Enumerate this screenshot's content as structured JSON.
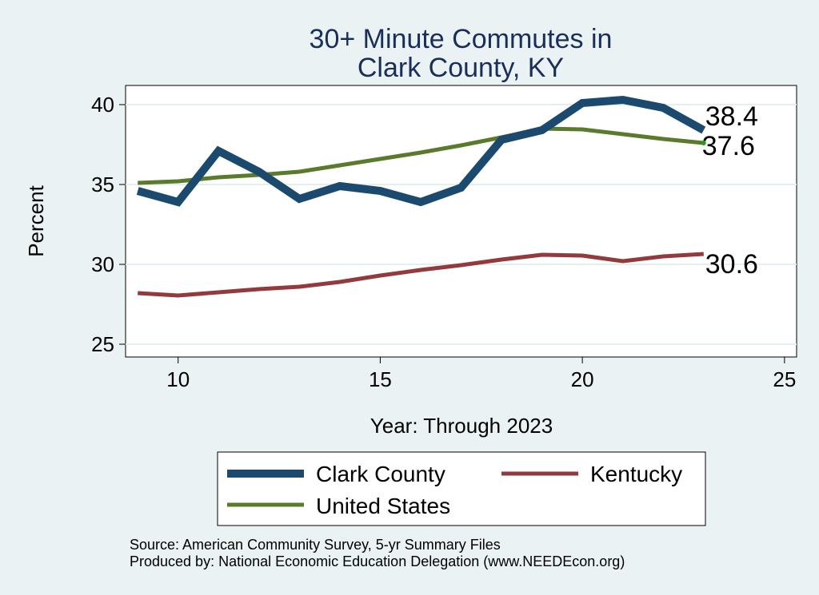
{
  "chart_data": {
    "type": "line",
    "title_lines": [
      "30+ Minute Commutes in",
      "Clark County, KY"
    ],
    "xlabel": "Year: Through 2023",
    "ylabel": "Percent",
    "xlim": [
      8.7,
      25.3
    ],
    "ylim": [
      24.2,
      41.2
    ],
    "xticks": [
      10,
      15,
      20,
      25
    ],
    "yticks": [
      25,
      30,
      35,
      40
    ],
    "grid": true,
    "legend_position": "bottom",
    "series": [
      {
        "name": "Clark County",
        "color": "#1b4a6e",
        "x": [
          9,
          10,
          11,
          12,
          13,
          14,
          15,
          16,
          17,
          18,
          19,
          20,
          21,
          22,
          23
        ],
        "values": [
          34.6,
          33.9,
          37.1,
          35.8,
          34.1,
          34.9,
          34.6,
          33.9,
          34.8,
          37.8,
          38.4,
          40.1,
          40.3,
          39.8,
          38.4
        ],
        "end_label": "38.4"
      },
      {
        "name": "Kentucky",
        "color": "#933a3e",
        "x": [
          9,
          10,
          11,
          12,
          13,
          14,
          15,
          16,
          17,
          18,
          19,
          20,
          21,
          22,
          23
        ],
        "values": [
          28.2,
          28.05,
          28.25,
          28.45,
          28.6,
          28.9,
          29.3,
          29.65,
          29.95,
          30.3,
          30.6,
          30.55,
          30.2,
          30.5,
          30.65
        ],
        "end_label": "30.6"
      },
      {
        "name": "United States",
        "color": "#5a7a2c",
        "x": [
          9,
          10,
          11,
          12,
          13,
          14,
          15,
          16,
          17,
          18,
          19,
          20,
          21,
          22,
          23
        ],
        "values": [
          35.1,
          35.2,
          35.45,
          35.6,
          35.8,
          36.2,
          36.6,
          37.0,
          37.45,
          37.95,
          38.5,
          38.45,
          38.15,
          37.85,
          37.6
        ],
        "end_label": "37.6"
      }
    ],
    "notes": [
      "Source: American Community Survey, 5-yr Summary Files",
      "Produced by: National Economic Education Delegation (www.NEEDEcon.org)"
    ]
  }
}
